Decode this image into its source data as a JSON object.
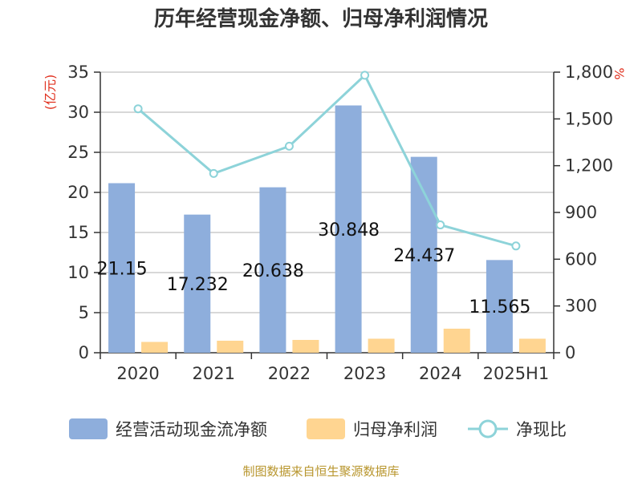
{
  "chart_data": {
    "type": "bar",
    "title": "历年经营现金净额、归母净利润情况",
    "categories": [
      "2020",
      "2021",
      "2022",
      "2023",
      "2024",
      "2025H1"
    ],
    "series": [
      {
        "name": "经营活动现金流净额",
        "type": "bar",
        "axis": "left",
        "color": "#8eaedc",
        "values": [
          21.15,
          17.232,
          20.638,
          30.848,
          24.437,
          11.565
        ],
        "labels": [
          "21.15",
          "17.232",
          "20.638",
          "30.848",
          "24.437",
          "11.565"
        ]
      },
      {
        "name": "归母净利润",
        "type": "bar",
        "axis": "left",
        "color": "#ffd591",
        "values": [
          1.35,
          1.5,
          1.6,
          1.75,
          3.0,
          1.75
        ]
      },
      {
        "name": "净现比",
        "type": "line",
        "axis": "right",
        "color": "#8dd3d9",
        "values": [
          1565,
          1150,
          1325,
          1780,
          820,
          685
        ]
      }
    ],
    "y_left": {
      "unit": "(亿元)",
      "min": 0,
      "max": 35,
      "ticks": [
        "0",
        "5",
        "10",
        "15",
        "20",
        "25",
        "30",
        "35"
      ]
    },
    "y_right": {
      "unit": "%",
      "min": 0,
      "max": 1800,
      "ticks": [
        "0",
        "300",
        "600",
        "900",
        "1,200",
        "1,500",
        "1,800"
      ]
    },
    "grid": true,
    "legend_position": "bottom",
    "source": "制图数据来自恒生聚源数据库"
  },
  "colors": {
    "axis": "#333333",
    "grid": "#cccccc",
    "unit": "#e0301e",
    "source": "#b8962e"
  }
}
